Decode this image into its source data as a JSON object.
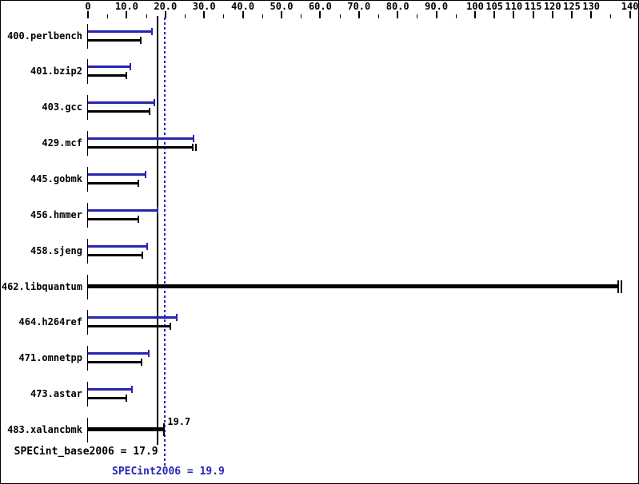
{
  "chart_data": {
    "type": "bar",
    "orientation": "horizontal",
    "title": "",
    "xlabel": "",
    "ylabel": "",
    "x_range": [
      0,
      140
    ],
    "grid": false,
    "colors": {
      "peak": "#2525b2",
      "base": "#000000",
      "background": "#ffffff"
    },
    "x_axis": {
      "major_ticks": [
        {
          "value": 0,
          "label": "0"
        },
        {
          "value": 10,
          "label": "10.0"
        },
        {
          "value": 20,
          "label": "20.0"
        },
        {
          "value": 30,
          "label": "30.0"
        },
        {
          "value": 40,
          "label": "40.0"
        },
        {
          "value": 50,
          "label": "50.0"
        },
        {
          "value": 60,
          "label": "60.0"
        },
        {
          "value": 70,
          "label": "70.0"
        },
        {
          "value": 80,
          "label": "80.0"
        },
        {
          "value": 90,
          "label": "90.0"
        },
        {
          "value": 100,
          "label": "100"
        },
        {
          "value": 105,
          "label": "105"
        },
        {
          "value": 110,
          "label": "110"
        },
        {
          "value": 115,
          "label": "115"
        },
        {
          "value": 120,
          "label": "120"
        },
        {
          "value": 125,
          "label": "125"
        },
        {
          "value": 130,
          "label": "130"
        },
        {
          "value": 140,
          "label": "140"
        }
      ],
      "minor_ticks": [
        5,
        15,
        25,
        35,
        45,
        55,
        65,
        75,
        85,
        95,
        135
      ]
    },
    "benchmarks": [
      {
        "name": "400.perlbench",
        "peak": {
          "value": 16.6,
          "label": "16.6"
        },
        "base": {
          "value": 13.6,
          "label": "13.6"
        }
      },
      {
        "name": "401.bzip2",
        "peak": {
          "value": 11.0,
          "label": "11.0"
        },
        "base": {
          "value": 9.94,
          "label": "9.94"
        }
      },
      {
        "name": "403.gcc",
        "peak": {
          "value": 17.1,
          "label": "17.1"
        },
        "base": {
          "value": 15.9,
          "label": "15.9"
        }
      },
      {
        "name": "429.mcf",
        "peak": {
          "value": 27.2,
          "label": "27.2"
        },
        "base": {
          "value": 27.0,
          "label": "27.0",
          "cap": "double"
        }
      },
      {
        "name": "445.gobmk",
        "peak": {
          "value": 14.8,
          "label": "14.8"
        },
        "base": {
          "value": 13.1,
          "label": "13.1"
        }
      },
      {
        "name": "456.hmmer",
        "peak": {
          "value": 17.9,
          "label": "17.9"
        },
        "base": {
          "value": 13.0,
          "label": "13.0"
        }
      },
      {
        "name": "458.sjeng",
        "peak": {
          "value": 15.3,
          "label": "15.3"
        },
        "base": {
          "value": 14.1,
          "label": "14.1"
        }
      },
      {
        "name": "462.libquantum",
        "single": {
          "value": 137,
          "label": "137",
          "cap": "double",
          "label_align": "right"
        }
      },
      {
        "name": "464.h264ref",
        "peak": {
          "value": 23.0,
          "label": "23.0"
        },
        "base": {
          "value": 21.2,
          "label": "21.2"
        }
      },
      {
        "name": "471.omnetpp",
        "peak": {
          "value": 15.6,
          "label": "15.6"
        },
        "base": {
          "value": 13.8,
          "label": "13.8"
        }
      },
      {
        "name": "473.astar",
        "peak": {
          "value": 11.4,
          "label": "11.4"
        },
        "base": {
          "value": 9.83,
          "label": "9.83"
        }
      },
      {
        "name": "483.xalancbmk",
        "single": {
          "value": 19.7,
          "label": "19.7",
          "cap": "single",
          "label_align": "left"
        }
      }
    ],
    "reference_lines": [
      {
        "name": "base-mean",
        "value": 17.9,
        "style": "solid",
        "color": "#000000"
      },
      {
        "name": "peak-mean",
        "value": 19.9,
        "style": "dotted",
        "color": "#2525b2"
      }
    ],
    "summary": {
      "base_label": "SPECint_base2006 = 17.9",
      "peak_label": "SPECint2006 = 19.9"
    }
  }
}
